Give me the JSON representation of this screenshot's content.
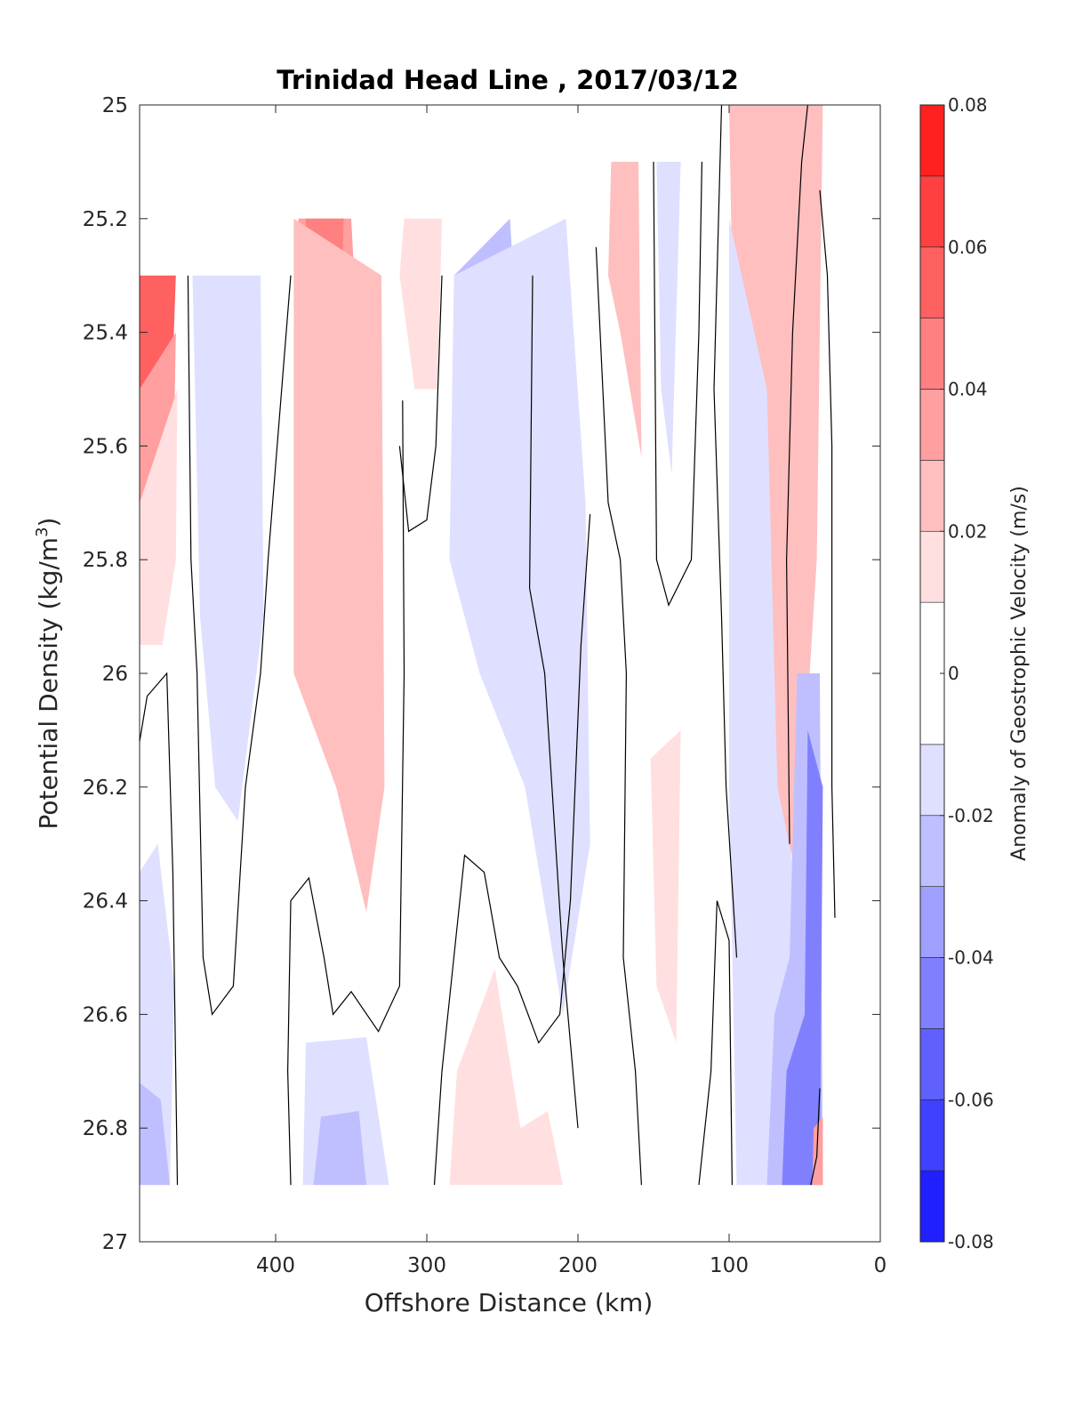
{
  "chart_data": {
    "type": "contourf",
    "title": "Trinidad Head Line , 2017/03/12",
    "xlabel": "Offshore Distance (km)",
    "ylabel": "Potential Density (kg/m",
    "ylabel_superscript": "3",
    "ylabel_suffix": ")",
    "x_reversed": true,
    "y_reversed": true,
    "xlim": [
      0,
      490
    ],
    "ylim": [
      25,
      27
    ],
    "xticks": [
      400,
      300,
      200,
      100,
      0
    ],
    "xtick_labels": [
      "400",
      "300",
      "200",
      "100",
      "0"
    ],
    "yticks": [
      25,
      25.2,
      25.4,
      25.6,
      25.8,
      26,
      26.2,
      26.4,
      26.6,
      26.8,
      27
    ],
    "ytick_labels": [
      "25",
      "25.2",
      "25.4",
      "25.6",
      "25.8",
      "26",
      "26.2",
      "26.4",
      "26.6",
      "26.8",
      "27"
    ],
    "colorbar": {
      "label": "Anomaly of Geostrophic Velocity (m/s)",
      "range": [
        -0.08,
        0.08
      ],
      "ticks": [
        0.08,
        0.06,
        0.04,
        0.02,
        0,
        -0.02,
        -0.04,
        -0.06,
        -0.08
      ],
      "tick_labels": [
        "0.08",
        "0.06",
        "0.04",
        "0.02",
        "0",
        "-0.02",
        "-0.04",
        "-0.06",
        "-0.08"
      ],
      "levels": [
        -0.08,
        -0.07,
        -0.06,
        -0.05,
        -0.04,
        -0.03,
        -0.02,
        -0.01,
        0.01,
        0.02,
        0.03,
        0.04,
        0.05,
        0.06,
        0.07,
        0.08
      ],
      "colors": [
        "#0000ff",
        "#2020ff",
        "#4040ff",
        "#6060ff",
        "#8080ff",
        "#9f9fff",
        "#bfbfff",
        "#dfdfff",
        "#ffffff",
        "#ffdfdf",
        "#ffbfbf",
        "#ff9f9f",
        "#ff8080",
        "#ff6060",
        "#ff4040",
        "#ff2020",
        "#ff0000"
      ]
    },
    "zero_contour_color": "#000000",
    "regions": [
      {
        "name": "cell-480-25.3",
        "value": 0.055,
        "points": [
          [
            490,
            25.3
          ],
          [
            466,
            25.3
          ],
          [
            470,
            25.6
          ],
          [
            478,
            25.8
          ],
          [
            490,
            25.75
          ]
        ]
      },
      {
        "name": "cell-480-25.6",
        "value": 0.03,
        "points": [
          [
            490,
            25.5
          ],
          [
            466,
            25.4
          ],
          [
            468,
            25.7
          ],
          [
            474,
            25.85
          ],
          [
            490,
            25.95
          ]
        ]
      },
      {
        "name": "cell-480-25.8",
        "value": 0.015,
        "points": [
          [
            490,
            25.7
          ],
          [
            465,
            25.5
          ],
          [
            466,
            25.8
          ],
          [
            475,
            25.95
          ],
          [
            490,
            25.95
          ]
        ]
      },
      {
        "name": "cell-430-25.5",
        "value": -0.015,
        "points": [
          [
            455,
            25.3
          ],
          [
            410,
            25.3
          ],
          [
            408,
            25.9
          ],
          [
            425,
            26.26
          ],
          [
            440,
            26.2
          ],
          [
            450,
            25.9
          ]
        ]
      },
      {
        "name": "cell-360-25.5",
        "value": 0.035,
        "points": [
          [
            385,
            25.2
          ],
          [
            350,
            25.2
          ],
          [
            342,
            25.6
          ],
          [
            345,
            26.1
          ],
          [
            365,
            25.9
          ],
          [
            385,
            26.0
          ],
          [
            388,
            25.6
          ]
        ]
      },
      {
        "name": "cell-360-25.5b",
        "value": 0.045,
        "points": [
          [
            380,
            25.2
          ],
          [
            355,
            25.2
          ],
          [
            360,
            25.7
          ],
          [
            372,
            25.6
          ],
          [
            380,
            25.4
          ]
        ]
      },
      {
        "name": "cell-350-26.1",
        "value": 0.02,
        "points": [
          [
            388,
            25.2
          ],
          [
            330,
            25.3
          ],
          [
            328,
            26.2
          ],
          [
            340,
            26.42
          ],
          [
            360,
            26.2
          ],
          [
            388,
            26.0
          ]
        ]
      },
      {
        "name": "cell-300-25.3",
        "value": 0.015,
        "points": [
          [
            315,
            25.2
          ],
          [
            290,
            25.2
          ],
          [
            293,
            25.5
          ],
          [
            308,
            25.5
          ],
          [
            318,
            25.3
          ]
        ]
      },
      {
        "name": "cell-260-25.5",
        "value": -0.025,
        "points": [
          [
            282,
            25.3
          ],
          [
            245,
            25.2
          ],
          [
            238,
            25.5
          ],
          [
            258,
            25.72
          ],
          [
            272,
            25.6
          ]
        ]
      },
      {
        "name": "cell-240-26.0",
        "value": -0.012,
        "points": [
          [
            282,
            25.3
          ],
          [
            208,
            25.2
          ],
          [
            195,
            25.7
          ],
          [
            192,
            26.3
          ],
          [
            210,
            26.6
          ],
          [
            235,
            26.2
          ],
          [
            265,
            26.0
          ],
          [
            285,
            25.8
          ]
        ]
      },
      {
        "name": "cell-165-25.4",
        "value": 0.02,
        "points": [
          [
            178,
            25.1
          ],
          [
            160,
            25.1
          ],
          [
            158,
            25.62
          ],
          [
            172,
            25.4
          ],
          [
            180,
            25.3
          ]
        ]
      },
      {
        "name": "cell-140-25.4",
        "value": -0.02,
        "points": [
          [
            148,
            25.1
          ],
          [
            132,
            25.1
          ],
          [
            138,
            25.65
          ],
          [
            145,
            25.5
          ]
        ]
      },
      {
        "name": "cell-140-26.3",
        "value": 0.015,
        "points": [
          [
            152,
            26.15
          ],
          [
            132,
            26.1
          ],
          [
            135,
            26.65
          ],
          [
            148,
            26.55
          ]
        ]
      },
      {
        "name": "cell-70-25.4",
        "value": 0.07,
        "points": [
          [
            95,
            25.0
          ],
          [
            42,
            25.0
          ],
          [
            48,
            25.3
          ],
          [
            60,
            25.9
          ],
          [
            75,
            25.5
          ],
          [
            90,
            25.2
          ]
        ]
      },
      {
        "name": "cell-70-25.8",
        "value": 0.04,
        "points": [
          [
            100,
            25.0
          ],
          [
            40,
            25.0
          ],
          [
            45,
            25.6
          ],
          [
            55,
            26.2
          ],
          [
            68,
            26.05
          ],
          [
            82,
            25.6
          ],
          [
            95,
            25.2
          ]
        ]
      },
      {
        "name": "cell-70-26.0",
        "value": 0.02,
        "points": [
          [
            100,
            25.0
          ],
          [
            38,
            25.0
          ],
          [
            42,
            25.8
          ],
          [
            55,
            26.35
          ],
          [
            72,
            26.2
          ],
          [
            88,
            25.8
          ],
          [
            98,
            25.3
          ]
        ]
      },
      {
        "name": "cell-80-26.2",
        "value": -0.015,
        "points": [
          [
            100,
            25.2
          ],
          [
            75,
            25.5
          ],
          [
            68,
            26.2
          ],
          [
            45,
            26.5
          ],
          [
            45,
            26.9
          ],
          [
            95,
            26.9
          ],
          [
            100,
            26.2
          ]
        ]
      },
      {
        "name": "cell-50-26.5",
        "value": -0.03,
        "points": [
          [
            55,
            26.0
          ],
          [
            40,
            26.0
          ],
          [
            38,
            26.9
          ],
          [
            75,
            26.9
          ],
          [
            70,
            26.6
          ],
          [
            60,
            26.5
          ]
        ]
      },
      {
        "name": "cell-45-26.5",
        "value": -0.045,
        "points": [
          [
            48,
            26.1
          ],
          [
            38,
            26.2
          ],
          [
            40,
            26.9
          ],
          [
            65,
            26.9
          ],
          [
            62,
            26.7
          ],
          [
            50,
            26.6
          ]
        ]
      },
      {
        "name": "cell-480-26.5",
        "value": -0.015,
        "points": [
          [
            490,
            26.35
          ],
          [
            478,
            26.3
          ],
          [
            467,
            26.55
          ],
          [
            470,
            26.9
          ],
          [
            490,
            26.9
          ]
        ]
      },
      {
        "name": "cell-480-26.8",
        "value": -0.025,
        "points": [
          [
            490,
            26.72
          ],
          [
            476,
            26.75
          ],
          [
            470,
            26.9
          ],
          [
            490,
            26.9
          ]
        ]
      },
      {
        "name": "cell-360-26.8",
        "value": -0.015,
        "points": [
          [
            380,
            26.65
          ],
          [
            340,
            26.64
          ],
          [
            325,
            26.9
          ],
          [
            382,
            26.9
          ]
        ]
      },
      {
        "name": "cell-360-26.85",
        "value": -0.025,
        "points": [
          [
            370,
            26.78
          ],
          [
            345,
            26.77
          ],
          [
            340,
            26.9
          ],
          [
            375,
            26.9
          ]
        ]
      },
      {
        "name": "cell-240-26.8",
        "value": 0.015,
        "points": [
          [
            280,
            26.7
          ],
          [
            255,
            26.52
          ],
          [
            238,
            26.8
          ],
          [
            220,
            26.77
          ],
          [
            210,
            26.9
          ],
          [
            285,
            26.9
          ]
        ]
      },
      {
        "name": "cell-40-26.8",
        "value": 0.03,
        "points": [
          [
            44,
            26.8
          ],
          [
            38,
            26.78
          ],
          [
            38,
            26.9
          ],
          [
            45,
            26.9
          ]
        ]
      }
    ],
    "zero_contours": [
      [
        [
          490,
          26.12
        ],
        [
          485,
          26.04
        ],
        [
          472,
          26.0
        ],
        [
          468,
          26.35
        ],
        [
          465,
          26.9
        ]
      ],
      [
        [
          458,
          25.3
        ],
        [
          456,
          25.8
        ],
        [
          452,
          26.0
        ],
        [
          448,
          26.5
        ],
        [
          442,
          26.6
        ],
        [
          428,
          26.55
        ],
        [
          420,
          26.2
        ],
        [
          410,
          26.0
        ],
        [
          405,
          25.8
        ],
        [
          390,
          25.3
        ]
      ],
      [
        [
          390,
          26.9
        ],
        [
          392,
          26.7
        ],
        [
          390,
          26.4
        ],
        [
          378,
          26.36
        ],
        [
          368,
          26.5
        ],
        [
          362,
          26.6
        ],
        [
          350,
          26.56
        ],
        [
          332,
          26.63
        ],
        [
          318,
          26.55
        ],
        [
          315,
          26.0
        ],
        [
          316,
          25.52
        ]
      ],
      [
        [
          318,
          25.6
        ],
        [
          312,
          25.75
        ],
        [
          300,
          25.73
        ],
        [
          294,
          25.6
        ],
        [
          290,
          25.3
        ]
      ],
      [
        [
          295,
          26.9
        ],
        [
          290,
          26.7
        ],
        [
          275,
          26.32
        ],
        [
          262,
          26.35
        ],
        [
          252,
          26.5
        ],
        [
          240,
          26.55
        ],
        [
          226,
          26.65
        ],
        [
          212,
          26.6
        ],
        [
          205,
          26.4
        ],
        [
          198,
          25.95
        ],
        [
          192,
          25.72
        ]
      ],
      [
        [
          200,
          26.8
        ],
        [
          210,
          26.5
        ],
        [
          222,
          26.0
        ],
        [
          232,
          25.85
        ],
        [
          230,
          25.3
        ]
      ],
      [
        [
          188,
          25.25
        ],
        [
          180,
          25.7
        ],
        [
          172,
          25.8
        ],
        [
          168,
          26.0
        ],
        [
          170,
          26.5
        ],
        [
          162,
          26.7
        ],
        [
          158,
          26.9
        ]
      ],
      [
        [
          150,
          25.1
        ],
        [
          148,
          25.8
        ],
        [
          140,
          25.88
        ],
        [
          125,
          25.8
        ],
        [
          120,
          25.4
        ],
        [
          118,
          25.1
        ]
      ],
      [
        [
          120,
          26.9
        ],
        [
          112,
          26.7
        ],
        [
          108,
          26.4
        ],
        [
          100,
          26.47
        ],
        [
          98,
          26.9
        ]
      ],
      [
        [
          105,
          25.0
        ],
        [
          110,
          25.5
        ],
        [
          105,
          25.9
        ],
        [
          102,
          26.2
        ],
        [
          95,
          26.5
        ]
      ],
      [
        [
          60,
          26.3
        ],
        [
          62,
          25.8
        ],
        [
          58,
          25.4
        ],
        [
          52,
          25.1
        ],
        [
          48,
          25.0
        ]
      ],
      [
        [
          40,
          25.15
        ],
        [
          35,
          25.3
        ],
        [
          32,
          25.6
        ],
        [
          32,
          26.2
        ],
        [
          30,
          26.43
        ]
      ],
      [
        [
          40,
          26.73
        ],
        [
          42,
          26.85
        ],
        [
          46,
          26.9
        ]
      ]
    ]
  }
}
